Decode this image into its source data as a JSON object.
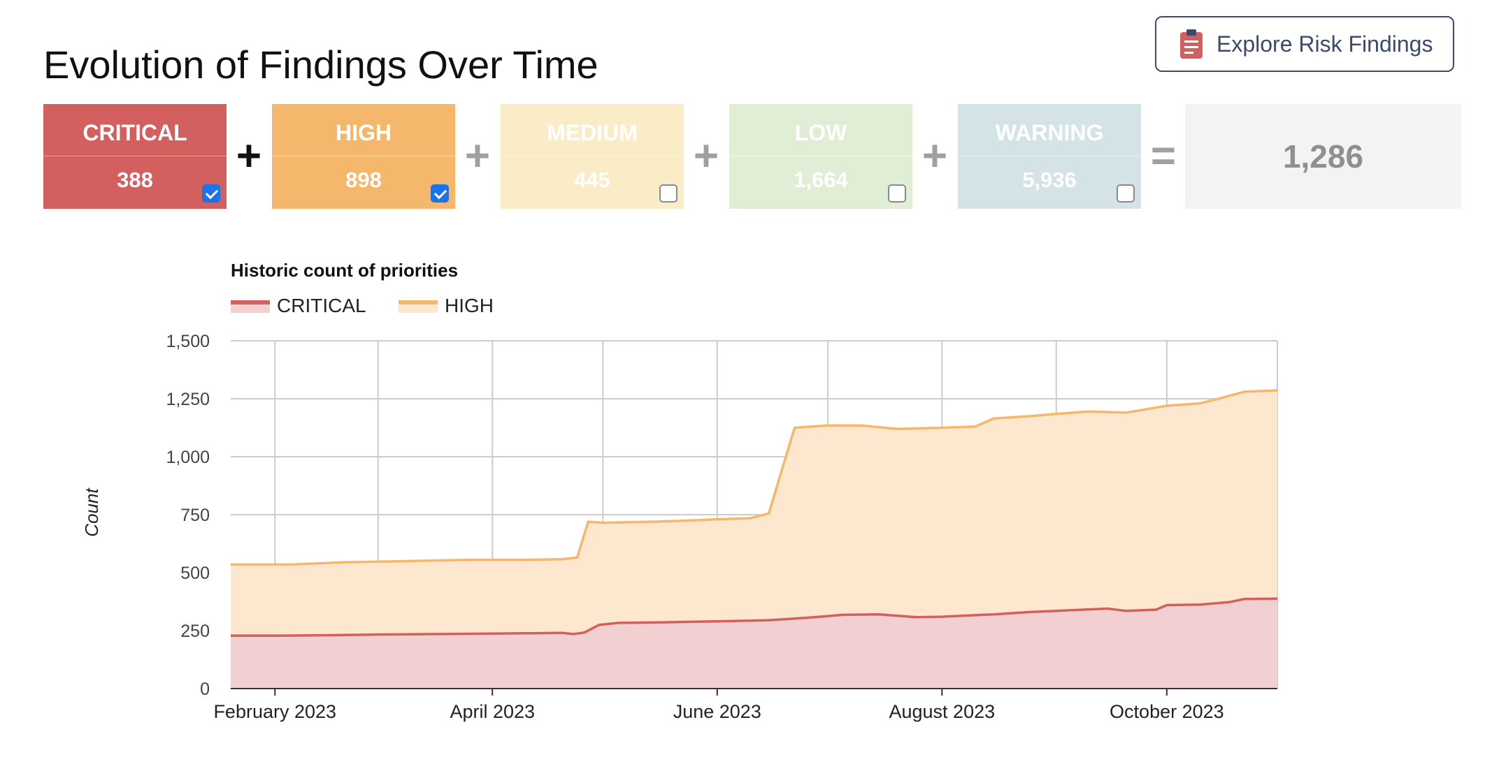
{
  "header": {
    "title": "Evolution of Findings Over Time",
    "explore_button": {
      "label": "Explore Risk Findings",
      "icon": "clipboard-icon",
      "color": "#d35f5f"
    }
  },
  "severity_tiles": [
    {
      "id": "critical",
      "label": "CRITICAL",
      "count": "388",
      "checked": true,
      "color": "#d35f5f"
    },
    {
      "id": "high",
      "label": "HIGH",
      "count": "898",
      "checked": true,
      "color": "#f5b76c"
    },
    {
      "id": "medium",
      "label": "MEDIUM",
      "count": "445",
      "checked": false,
      "color": "#f9ecc6"
    },
    {
      "id": "low",
      "label": "LOW",
      "count": "1,664",
      "checked": false,
      "color": "#e1eed6"
    },
    {
      "id": "warning",
      "label": "WARNING",
      "count": "5,936",
      "checked": false,
      "color": "#d4e3e6"
    }
  ],
  "operators": [
    "+",
    "+",
    "+",
    "+",
    "="
  ],
  "total": "1,286",
  "chart_data": {
    "type": "area",
    "stacked": true,
    "title": "Historic count of priorities",
    "ylabel": "Count",
    "xlabel": "",
    "ylim": [
      0,
      1500
    ],
    "yticks": [
      "0",
      "250",
      "500",
      "750",
      "1,000",
      "1,250",
      "1,500"
    ],
    "xticks": [
      {
        "date": "2023-02-01",
        "label": "February 2023"
      },
      {
        "date": "2023-04-01",
        "label": "April 2023"
      },
      {
        "date": "2023-06-01",
        "label": "June 2023"
      },
      {
        "date": "2023-08-01",
        "label": "August 2023"
      },
      {
        "date": "2023-10-01",
        "label": "October 2023"
      }
    ],
    "x_range": [
      "2023-01-20",
      "2023-10-31"
    ],
    "grid": true,
    "legend": "top-left",
    "series": [
      {
        "name": "CRITICAL",
        "color": "#d35f5f",
        "fill": "#f2cfd0",
        "points": [
          [
            "2023-01-20",
            228
          ],
          [
            "2023-02-01",
            228
          ],
          [
            "2023-02-15",
            230
          ],
          [
            "2023-03-01",
            233
          ],
          [
            "2023-03-15",
            235
          ],
          [
            "2023-04-01",
            237
          ],
          [
            "2023-04-20",
            240
          ],
          [
            "2023-04-23",
            235
          ],
          [
            "2023-04-26",
            242
          ],
          [
            "2023-04-30",
            275
          ],
          [
            "2023-05-05",
            283
          ],
          [
            "2023-05-15",
            285
          ],
          [
            "2023-06-01",
            290
          ],
          [
            "2023-06-15",
            295
          ],
          [
            "2023-06-25",
            305
          ],
          [
            "2023-07-05",
            318
          ],
          [
            "2023-07-15",
            320
          ],
          [
            "2023-07-25",
            308
          ],
          [
            "2023-08-01",
            310
          ],
          [
            "2023-08-15",
            320
          ],
          [
            "2023-08-25",
            330
          ],
          [
            "2023-09-05",
            338
          ],
          [
            "2023-09-15",
            345
          ],
          [
            "2023-09-20",
            335
          ],
          [
            "2023-09-28",
            340
          ],
          [
            "2023-10-01",
            360
          ],
          [
            "2023-10-10",
            362
          ],
          [
            "2023-10-18",
            373
          ],
          [
            "2023-10-22",
            386
          ],
          [
            "2023-10-31",
            388
          ]
        ]
      },
      {
        "name": "HIGH",
        "color": "#f5b76c",
        "fill": "#fde7cf",
        "points": [
          [
            "2023-01-20",
            535
          ],
          [
            "2023-02-05",
            535
          ],
          [
            "2023-02-20",
            545
          ],
          [
            "2023-03-10",
            550
          ],
          [
            "2023-03-25",
            555
          ],
          [
            "2023-04-10",
            555
          ],
          [
            "2023-04-20",
            558
          ],
          [
            "2023-04-24",
            565
          ],
          [
            "2023-04-27",
            720
          ],
          [
            "2023-05-01",
            715
          ],
          [
            "2023-05-15",
            720
          ],
          [
            "2023-05-25",
            725
          ],
          [
            "2023-06-01",
            730
          ],
          [
            "2023-06-10",
            735
          ],
          [
            "2023-06-15",
            755
          ],
          [
            "2023-06-22",
            1125
          ],
          [
            "2023-07-01",
            1135
          ],
          [
            "2023-07-10",
            1135
          ],
          [
            "2023-07-20",
            1120
          ],
          [
            "2023-08-01",
            1125
          ],
          [
            "2023-08-10",
            1130
          ],
          [
            "2023-08-15",
            1165
          ],
          [
            "2023-08-25",
            1175
          ],
          [
            "2023-09-01",
            1185
          ],
          [
            "2023-09-10",
            1195
          ],
          [
            "2023-09-20",
            1190
          ],
          [
            "2023-10-01",
            1220
          ],
          [
            "2023-10-10",
            1230
          ],
          [
            "2023-10-15",
            1250
          ],
          [
            "2023-10-22",
            1280
          ],
          [
            "2023-10-31",
            1286
          ]
        ]
      }
    ]
  }
}
